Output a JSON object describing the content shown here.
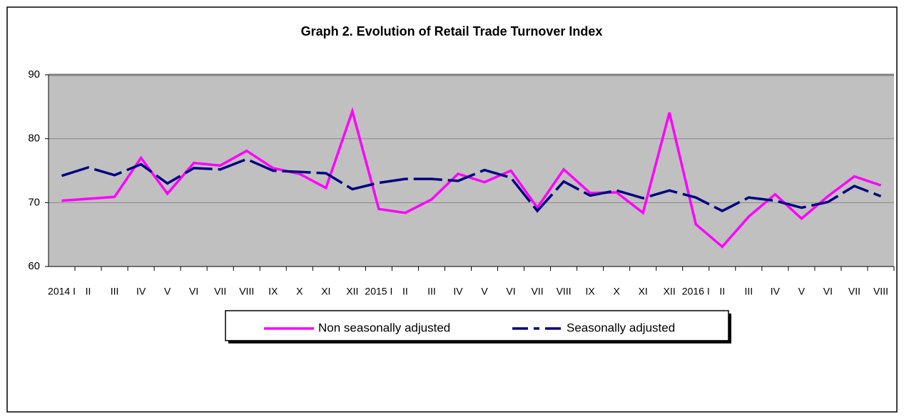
{
  "chart_data": {
    "type": "line",
    "title": "Graph 2. Evolution of Retail Trade Turnover Index",
    "categories": [
      "2014 I",
      "II",
      "III",
      "IV",
      "V",
      "VI",
      "VII",
      "VIII",
      "IX",
      "X",
      "XI",
      "XII",
      "2015 I",
      "II",
      "III",
      "IV",
      "V",
      "VI",
      "VII",
      "VIII",
      "IX",
      "X",
      "XI",
      "XII",
      "2016 I",
      "II",
      "III",
      "IV",
      "V",
      "VI",
      "VII",
      "VIII"
    ],
    "series": [
      {
        "name": "Non seasonally adjusted",
        "color": "#ff00ff",
        "dash": false,
        "values": [
          70.3,
          70.6,
          70.9,
          77.0,
          71.4,
          76.2,
          75.8,
          78.1,
          75.4,
          74.5,
          72.3,
          84.3,
          69.0,
          68.4,
          70.5,
          74.5,
          73.2,
          75.0,
          69.2,
          75.2,
          71.5,
          71.6,
          68.4,
          84.1,
          66.6,
          63.1,
          67.8,
          71.3,
          67.5,
          71.0,
          74.1,
          72.7
        ]
      },
      {
        "name": "Seasonally adjusted",
        "color": "#000080",
        "dash": true,
        "values": [
          74.2,
          75.5,
          74.3,
          76.0,
          73.0,
          75.4,
          75.2,
          76.8,
          75.0,
          74.8,
          74.6,
          72.1,
          73.1,
          73.7,
          73.7,
          73.4,
          75.1,
          73.9,
          68.7,
          73.3,
          71.1,
          71.9,
          70.7,
          71.9,
          70.8,
          68.7,
          70.8,
          70.3,
          69.2,
          70.1,
          72.6,
          71.0
        ]
      }
    ],
    "ylim": [
      60,
      90
    ],
    "yticks": [
      60,
      70,
      80,
      90
    ],
    "grid": true
  }
}
